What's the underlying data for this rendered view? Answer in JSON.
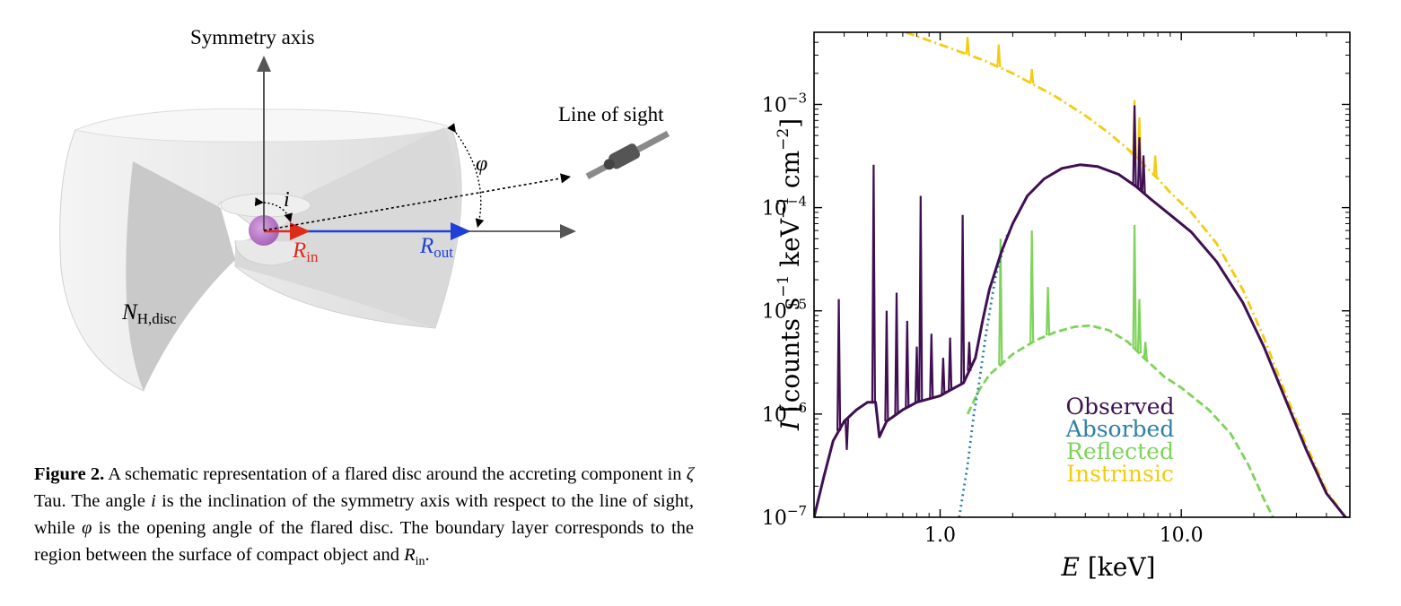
{
  "diagram": {
    "symmetry_axis_label": "Symmetry axis",
    "line_of_sight_label": "Line of sight",
    "phi_label": "φ",
    "i_label": "i",
    "r_in_main": "R",
    "r_in_sub": "in",
    "r_out_main": "R",
    "r_out_sub": "out",
    "nh_main": "N",
    "nh_sub": "H,disc",
    "colors": {
      "r_in": "#dd2b1c",
      "r_out": "#1f3fd6",
      "star": "#b77ac6",
      "disc": "#e6e6e6",
      "disc_shadow": "#c8c8c8",
      "axis": "#666666"
    }
  },
  "caption": {
    "label": "Figure 2.",
    "text_1": " A schematic representation of a flared disc around the accreting component in ",
    "zeta": "ζ",
    "text_2": " Tau. The angle ",
    "i": "i",
    "text_3": " is the inclination of the symmetry axis with respect to the line of sight, while ",
    "phi": "φ",
    "text_4": " is the opening angle of the flared disc. The boundary layer corresponds to the region between the surface of compact object and ",
    "r": "R",
    "r_sub": "in",
    "end": "."
  },
  "chart_data": {
    "type": "line",
    "xscale": "log",
    "yscale": "log",
    "xlim": [
      0.3,
      50
    ],
    "ylim": [
      1e-07,
      0.005
    ],
    "xlabel_var": "E",
    "xlabel_unit": "[keV]",
    "ylabel_var": "I",
    "ylabel_unit_parts": [
      "[counts s",
      "−1",
      " keV",
      "−1",
      " cm",
      "−2",
      "]"
    ],
    "xticks": [
      {
        "value": 1.0,
        "label": "1.0"
      },
      {
        "value": 10.0,
        "label": "10.0"
      }
    ],
    "yticks": [
      {
        "value": 1e-07,
        "base": "10",
        "exp": "−7"
      },
      {
        "value": 1e-06,
        "base": "10",
        "exp": "−6"
      },
      {
        "value": 1e-05,
        "base": "10",
        "exp": "−5"
      },
      {
        "value": 0.0001,
        "base": "10",
        "exp": "−4"
      },
      {
        "value": 0.001,
        "base": "10",
        "exp": "−3"
      }
    ],
    "legend_position": "lower-center",
    "series": [
      {
        "name": "Observed",
        "color": "#3f0f52",
        "style": "solid",
        "points": [
          [
            0.3,
            1e-07
          ],
          [
            0.33,
            2.5e-07
          ],
          [
            0.36,
            5.5e-07
          ],
          [
            0.4,
            8.5e-07
          ],
          [
            0.45,
            1.1e-06
          ],
          [
            0.5,
            1.3e-06
          ],
          [
            0.54,
            1.3e-06
          ],
          [
            0.56,
            6e-07
          ],
          [
            0.6,
            8.5e-07
          ],
          [
            0.7,
            1.1e-06
          ],
          [
            0.8,
            1.3e-06
          ],
          [
            1.0,
            1.5e-06
          ],
          [
            1.1,
            1.7e-06
          ],
          [
            1.25,
            2e-06
          ],
          [
            1.4,
            3.5e-06
          ],
          [
            1.5,
            8e-06
          ],
          [
            1.6,
            1.6e-05
          ],
          [
            1.8,
            3.8e-05
          ],
          [
            2.0,
            7e-05
          ],
          [
            2.3,
            0.00013
          ],
          [
            2.7,
            0.00019
          ],
          [
            3.2,
            0.00024
          ],
          [
            3.8,
            0.00026
          ],
          [
            4.5,
            0.00025
          ],
          [
            5.5,
            0.00021
          ],
          [
            6.5,
            0.00016
          ],
          [
            7.5,
            0.00012
          ],
          [
            9.0,
            8.5e-05
          ],
          [
            11,
            5.8e-05
          ],
          [
            14,
            3e-05
          ],
          [
            18,
            1.2e-05
          ],
          [
            22,
            4.5e-06
          ],
          [
            27,
            1.4e-06
          ],
          [
            33,
            4.5e-07
          ],
          [
            40,
            1.7e-07
          ],
          [
            48,
            1e-07
          ]
        ],
        "lines": [
          [
            0.38,
            1.3e-05
          ],
          [
            0.41,
            4.5e-07
          ],
          [
            0.53,
            0.00026
          ],
          [
            0.6,
            1e-05
          ],
          [
            0.66,
            1.5e-05
          ],
          [
            0.73,
            8e-06
          ],
          [
            0.8,
            4.5e-06
          ],
          [
            0.83,
            0.00013
          ],
          [
            0.92,
            6e-06
          ],
          [
            1.03,
            3.5e-06
          ],
          [
            1.1,
            5.5e-06
          ],
          [
            1.24,
            8.5e-05
          ],
          [
            1.32,
            5e-06
          ],
          [
            6.4,
            0.00098
          ],
          [
            6.7,
            0.00048
          ],
          [
            6.97,
            0.00032
          ]
        ]
      },
      {
        "name": "Absorbed",
        "color": "#2d7fa8",
        "style": "dotted",
        "points": [
          [
            1.2,
            1e-07
          ],
          [
            1.3,
            3.2e-07
          ],
          [
            1.38,
            1e-06
          ],
          [
            1.45,
            2e-06
          ],
          [
            1.55,
            6e-06
          ],
          [
            1.7,
            2.2e-05
          ],
          [
            1.9,
            5.5e-05
          ]
        ]
      },
      {
        "name": "Reflected",
        "color": "#7ed35a",
        "style": "dashed",
        "points": [
          [
            1.3,
            1e-06
          ],
          [
            1.45,
            1.7e-06
          ],
          [
            1.6,
            2.4e-06
          ],
          [
            2.0,
            3.8e-06
          ],
          [
            2.5,
            5.2e-06
          ],
          [
            3.0,
            6.2e-06
          ],
          [
            3.6,
            7e-06
          ],
          [
            4.2,
            7.2e-06
          ],
          [
            5.0,
            6.5e-06
          ],
          [
            6.0,
            5e-06
          ],
          [
            7.0,
            3.5e-06
          ],
          [
            8.5,
            2.3e-06
          ],
          [
            10,
            1.8e-06
          ],
          [
            13,
            1.1e-06
          ],
          [
            16,
            6.5e-07
          ],
          [
            19,
            3.2e-07
          ],
          [
            22,
            1.5e-07
          ],
          [
            24,
            1e-07
          ]
        ],
        "lines": [
          [
            1.78,
            5e-05
          ],
          [
            2.4,
            6e-05
          ],
          [
            2.8,
            1.7e-05
          ],
          [
            6.4,
            6.8e-05
          ],
          [
            6.7,
            1.3e-05
          ],
          [
            7.1,
            5e-06
          ]
        ]
      },
      {
        "name": "Instrinsic",
        "color": "#f2cc10",
        "style": "dashdot",
        "points": [
          [
            0.72,
            0.005
          ],
          [
            1.0,
            0.0038
          ],
          [
            1.5,
            0.0027
          ],
          [
            2.0,
            0.002
          ],
          [
            3.0,
            0.0012
          ],
          [
            4.0,
            0.00078
          ],
          [
            5.0,
            0.00053
          ],
          [
            6.0,
            0.00037
          ],
          [
            7.0,
            0.00026
          ],
          [
            8.0,
            0.00019
          ],
          [
            9.0,
            0.00014
          ],
          [
            11,
            9e-05
          ],
          [
            14,
            4.5e-05
          ],
          [
            18,
            1.6e-05
          ],
          [
            22,
            5.5e-06
          ],
          [
            27,
            1.6e-06
          ],
          [
            33,
            5e-07
          ],
          [
            40,
            1.8e-07
          ],
          [
            48,
            1e-07
          ]
        ],
        "lines": [
          [
            1.3,
            0.0045
          ],
          [
            1.75,
            0.0038
          ],
          [
            2.4,
            0.0022
          ],
          [
            6.4,
            0.0011
          ],
          [
            6.7,
            0.00075
          ],
          [
            7.8,
            0.00032
          ]
        ]
      }
    ]
  }
}
